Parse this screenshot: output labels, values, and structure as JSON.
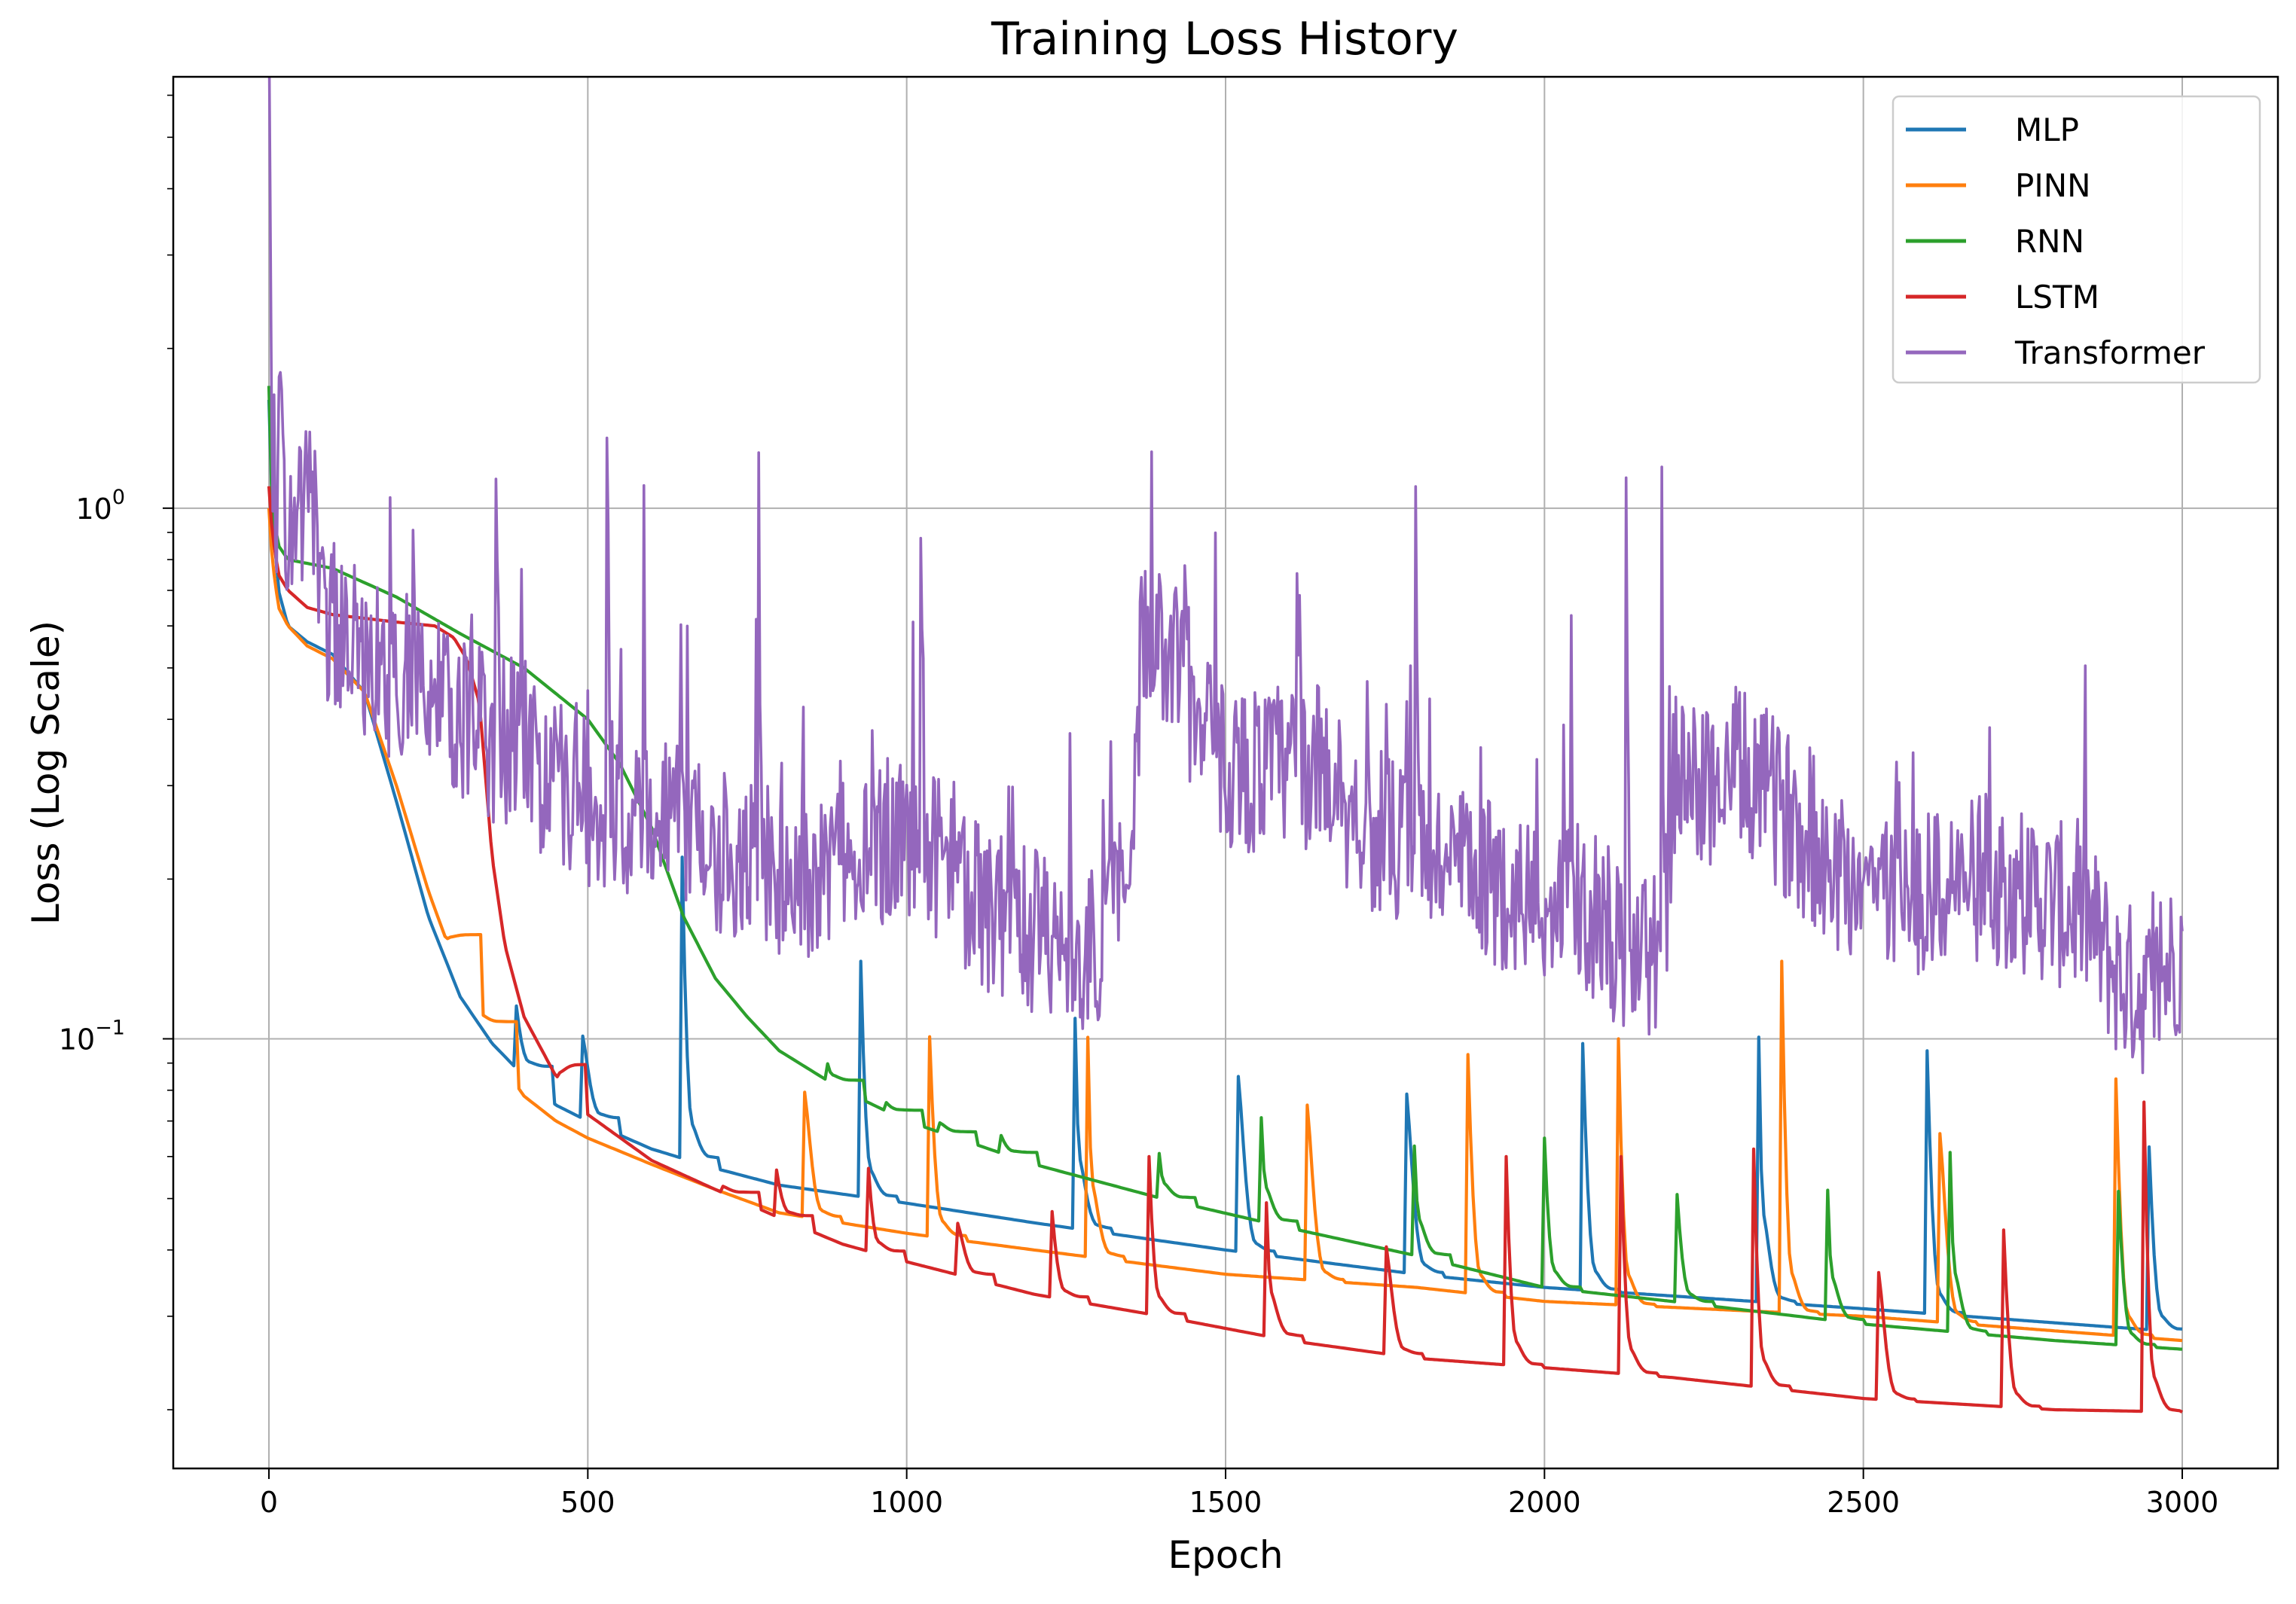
{
  "chart_data": {
    "type": "line",
    "title": "Training Loss History",
    "xlabel": "Epoch",
    "ylabel": "Loss (Log Scale)",
    "x_ticks": [
      0,
      500,
      1000,
      1500,
      2000,
      2500,
      3000
    ],
    "y_ticks": [
      {
        "value": 1,
        "label_base": "10",
        "label_exp": "0"
      },
      {
        "value": 0.1,
        "label_base": "10",
        "label_exp": "−1"
      }
    ],
    "xlim": [
      -150,
      3150
    ],
    "ylim": [
      0.0155,
      6.5
    ],
    "yscale": "log",
    "grid": true,
    "legend_position": "upper-right",
    "series": [
      {
        "name": "MLP",
        "color": "#1f77b4",
        "points": [
          [
            0,
            1.6
          ],
          [
            5,
            1.0
          ],
          [
            15,
            0.7
          ],
          [
            30,
            0.6
          ],
          [
            60,
            0.56
          ],
          [
            100,
            0.53
          ],
          [
            150,
            0.45
          ],
          [
            200,
            0.28
          ],
          [
            250,
            0.17
          ],
          [
            300,
            0.12
          ],
          [
            350,
            0.098
          ],
          [
            400,
            0.085
          ],
          [
            450,
            0.075
          ],
          [
            500,
            0.07
          ],
          [
            600,
            0.062
          ],
          [
            700,
            0.057
          ],
          [
            800,
            0.053
          ],
          [
            1000,
            0.049
          ],
          [
            1200,
            0.045
          ],
          [
            1500,
            0.04
          ],
          [
            1800,
            0.036
          ],
          [
            2000,
            0.034
          ],
          [
            2500,
            0.031
          ],
          [
            3000,
            0.028
          ]
        ],
        "spikes": [
          [
            385,
            0.13
          ],
          [
            490,
            0.14
          ],
          [
            648,
            0.22
          ],
          [
            928,
            0.14
          ],
          [
            1263,
            0.15
          ],
          [
            1518,
            0.17
          ],
          [
            1782,
            0.16
          ],
          [
            2057,
            0.16
          ],
          [
            2335,
            0.15
          ],
          [
            2597,
            0.16
          ],
          [
            2945,
            0.09
          ]
        ]
      },
      {
        "name": "PINN",
        "color": "#ff7f0e",
        "points": [
          [
            0,
            1.0
          ],
          [
            5,
            0.8
          ],
          [
            15,
            0.65
          ],
          [
            30,
            0.6
          ],
          [
            60,
            0.55
          ],
          [
            100,
            0.52
          ],
          [
            150,
            0.45
          ],
          [
            200,
            0.3
          ],
          [
            250,
            0.19
          ],
          [
            300,
            0.13
          ],
          [
            350,
            0.095
          ],
          [
            400,
            0.078
          ],
          [
            450,
            0.07
          ],
          [
            500,
            0.065
          ],
          [
            600,
            0.058
          ],
          [
            700,
            0.052
          ],
          [
            800,
            0.047
          ],
          [
            1000,
            0.043
          ],
          [
            1200,
            0.04
          ],
          [
            1500,
            0.036
          ],
          [
            1800,
            0.034
          ],
          [
            2000,
            0.032
          ],
          [
            2500,
            0.03
          ],
          [
            3000,
            0.027
          ]
        ],
        "spikes": [
          [
            275,
            0.15
          ],
          [
            330,
            0.115
          ],
          [
            838,
            0.13
          ],
          [
            1033,
            0.15
          ],
          [
            1283,
            0.14
          ],
          [
            1626,
            0.15
          ],
          [
            1877,
            0.15
          ],
          [
            2116,
            0.1
          ],
          [
            2372,
            0.14
          ],
          [
            2618,
            0.14
          ],
          [
            2893,
            0.14
          ]
        ]
      },
      {
        "name": "RNN",
        "color": "#2ca02c",
        "points": [
          [
            0,
            1.7
          ],
          [
            5,
            1.0
          ],
          [
            15,
            0.85
          ],
          [
            30,
            0.8
          ],
          [
            100,
            0.77
          ],
          [
            200,
            0.68
          ],
          [
            300,
            0.58
          ],
          [
            400,
            0.5
          ],
          [
            500,
            0.4
          ],
          [
            550,
            0.33
          ],
          [
            600,
            0.25
          ],
          [
            650,
            0.17
          ],
          [
            700,
            0.13
          ],
          [
            750,
            0.11
          ],
          [
            800,
            0.095
          ],
          [
            900,
            0.08
          ],
          [
            1000,
            0.07
          ],
          [
            1200,
            0.058
          ],
          [
            1400,
            0.05
          ],
          [
            1600,
            0.044
          ],
          [
            1800,
            0.039
          ],
          [
            2000,
            0.034
          ],
          [
            2200,
            0.032
          ],
          [
            2500,
            0.029
          ],
          [
            2800,
            0.027
          ],
          [
            3000,
            0.026
          ]
        ],
        "spikes": [
          [
            875,
            0.092
          ],
          [
            965,
            0.077
          ],
          [
            1050,
            0.072
          ],
          [
            1145,
            0.068
          ],
          [
            1395,
            0.065
          ],
          [
            1555,
            0.083
          ],
          [
            1795,
            0.074
          ],
          [
            2000,
            0.065
          ],
          [
            2205,
            0.063
          ],
          [
            2443,
            0.063
          ],
          [
            2635,
            0.08
          ],
          [
            2897,
            0.07
          ]
        ]
      },
      {
        "name": "LSTM",
        "color": "#d62728",
        "points": [
          [
            0,
            1.1
          ],
          [
            5,
            0.9
          ],
          [
            15,
            0.75
          ],
          [
            30,
            0.7
          ],
          [
            60,
            0.65
          ],
          [
            100,
            0.63
          ],
          [
            150,
            0.62
          ],
          [
            200,
            0.61
          ],
          [
            260,
            0.6
          ],
          [
            290,
            0.57
          ],
          [
            310,
            0.52
          ],
          [
            330,
            0.43
          ],
          [
            350,
            0.22
          ],
          [
            370,
            0.15
          ],
          [
            400,
            0.11
          ],
          [
            450,
            0.085
          ],
          [
            500,
            0.072
          ],
          [
            600,
            0.059
          ],
          [
            700,
            0.052
          ],
          [
            800,
            0.046
          ],
          [
            900,
            0.041
          ],
          [
            1000,
            0.038
          ],
          [
            1200,
            0.033
          ],
          [
            1400,
            0.03
          ],
          [
            1600,
            0.027
          ],
          [
            1800,
            0.025
          ],
          [
            2000,
            0.024
          ],
          [
            2200,
            0.023
          ],
          [
            2500,
            0.021
          ],
          [
            2800,
            0.02
          ],
          [
            3000,
            0.0198
          ]
        ],
        "spikes": [
          [
            440,
            0.065
          ],
          [
            710,
            0.054
          ],
          [
            793,
            0.062
          ],
          [
            940,
            0.057
          ],
          [
            1078,
            0.055
          ],
          [
            1225,
            0.056
          ],
          [
            1380,
            0.06
          ],
          [
            1563,
            0.06
          ],
          [
            1750,
            0.062
          ],
          [
            1940,
            0.06
          ],
          [
            2120,
            0.06
          ],
          [
            2328,
            0.062
          ],
          [
            2522,
            0.06
          ],
          [
            2717,
            0.062
          ],
          [
            2940,
            0.076
          ]
        ]
      },
      {
        "name": "Transformer",
        "color": "#9467bd",
        "points": [
          [
            0,
            7.2
          ],
          [
            2,
            3.0
          ],
          [
            5,
            1.5
          ],
          [
            10,
            1.1
          ],
          [
            20,
            0.9
          ],
          [
            50,
            0.72
          ],
          [
            100,
            0.6
          ],
          [
            150,
            0.52
          ],
          [
            200,
            0.47
          ],
          [
            250,
            0.43
          ],
          [
            300,
            0.4
          ],
          [
            350,
            0.37
          ],
          [
            400,
            0.33
          ],
          [
            450,
            0.3
          ],
          [
            500,
            0.28
          ],
          [
            550,
            0.26
          ],
          [
            600,
            0.25
          ],
          [
            650,
            0.24
          ],
          [
            700,
            0.23
          ],
          [
            750,
            0.21
          ],
          [
            800,
            0.2
          ],
          [
            850,
            0.2
          ],
          [
            900,
            0.22
          ],
          [
            950,
            0.24
          ],
          [
            1000,
            0.23
          ],
          [
            1050,
            0.2
          ],
          [
            1100,
            0.18
          ],
          [
            1150,
            0.17
          ],
          [
            1200,
            0.16
          ],
          [
            1250,
            0.15
          ],
          [
            1300,
            0.15
          ],
          [
            1350,
            0.2
          ],
          [
            1370,
            0.62
          ],
          [
            1400,
            0.48
          ],
          [
            1450,
            0.39
          ],
          [
            1500,
            0.33
          ],
          [
            1550,
            0.32
          ],
          [
            1600,
            0.33
          ],
          [
            1650,
            0.31
          ],
          [
            1700,
            0.27
          ],
          [
            1750,
            0.24
          ],
          [
            1800,
            0.22
          ],
          [
            1850,
            0.21
          ],
          [
            1900,
            0.2
          ],
          [
            1950,
            0.19
          ],
          [
            2000,
            0.18
          ],
          [
            2050,
            0.17
          ],
          [
            2100,
            0.15
          ],
          [
            2150,
            0.14
          ],
          [
            2190,
            0.14
          ],
          [
            2200,
            0.3
          ],
          [
            2250,
            0.3
          ],
          [
            2300,
            0.32
          ],
          [
            2350,
            0.29
          ],
          [
            2400,
            0.25
          ],
          [
            2450,
            0.21
          ],
          [
            2500,
            0.2
          ],
          [
            2550,
            0.19
          ],
          [
            2600,
            0.18
          ],
          [
            2650,
            0.2
          ],
          [
            2700,
            0.2
          ],
          [
            2750,
            0.19
          ],
          [
            2800,
            0.18
          ],
          [
            2850,
            0.17
          ],
          [
            2900,
            0.13
          ],
          [
            2950,
            0.12
          ],
          [
            3000,
            0.15
          ]
        ],
        "spikes": [
          [
            16,
            1.9
          ],
          [
            190,
            1.2
          ],
          [
            225,
            1.28
          ],
          [
            355,
            1.75
          ],
          [
            530,
            1.15
          ],
          [
            587,
            1.25
          ],
          [
            768,
            0.8
          ],
          [
            1022,
            0.9
          ],
          [
            1383,
            0.75
          ],
          [
            1611,
            0.82
          ],
          [
            1798,
            0.82
          ],
          [
            2041,
            0.8
          ],
          [
            2128,
            0.8
          ],
          [
            2184,
            0.98
          ],
          [
            2551,
            0.5
          ]
        ]
      }
    ]
  }
}
